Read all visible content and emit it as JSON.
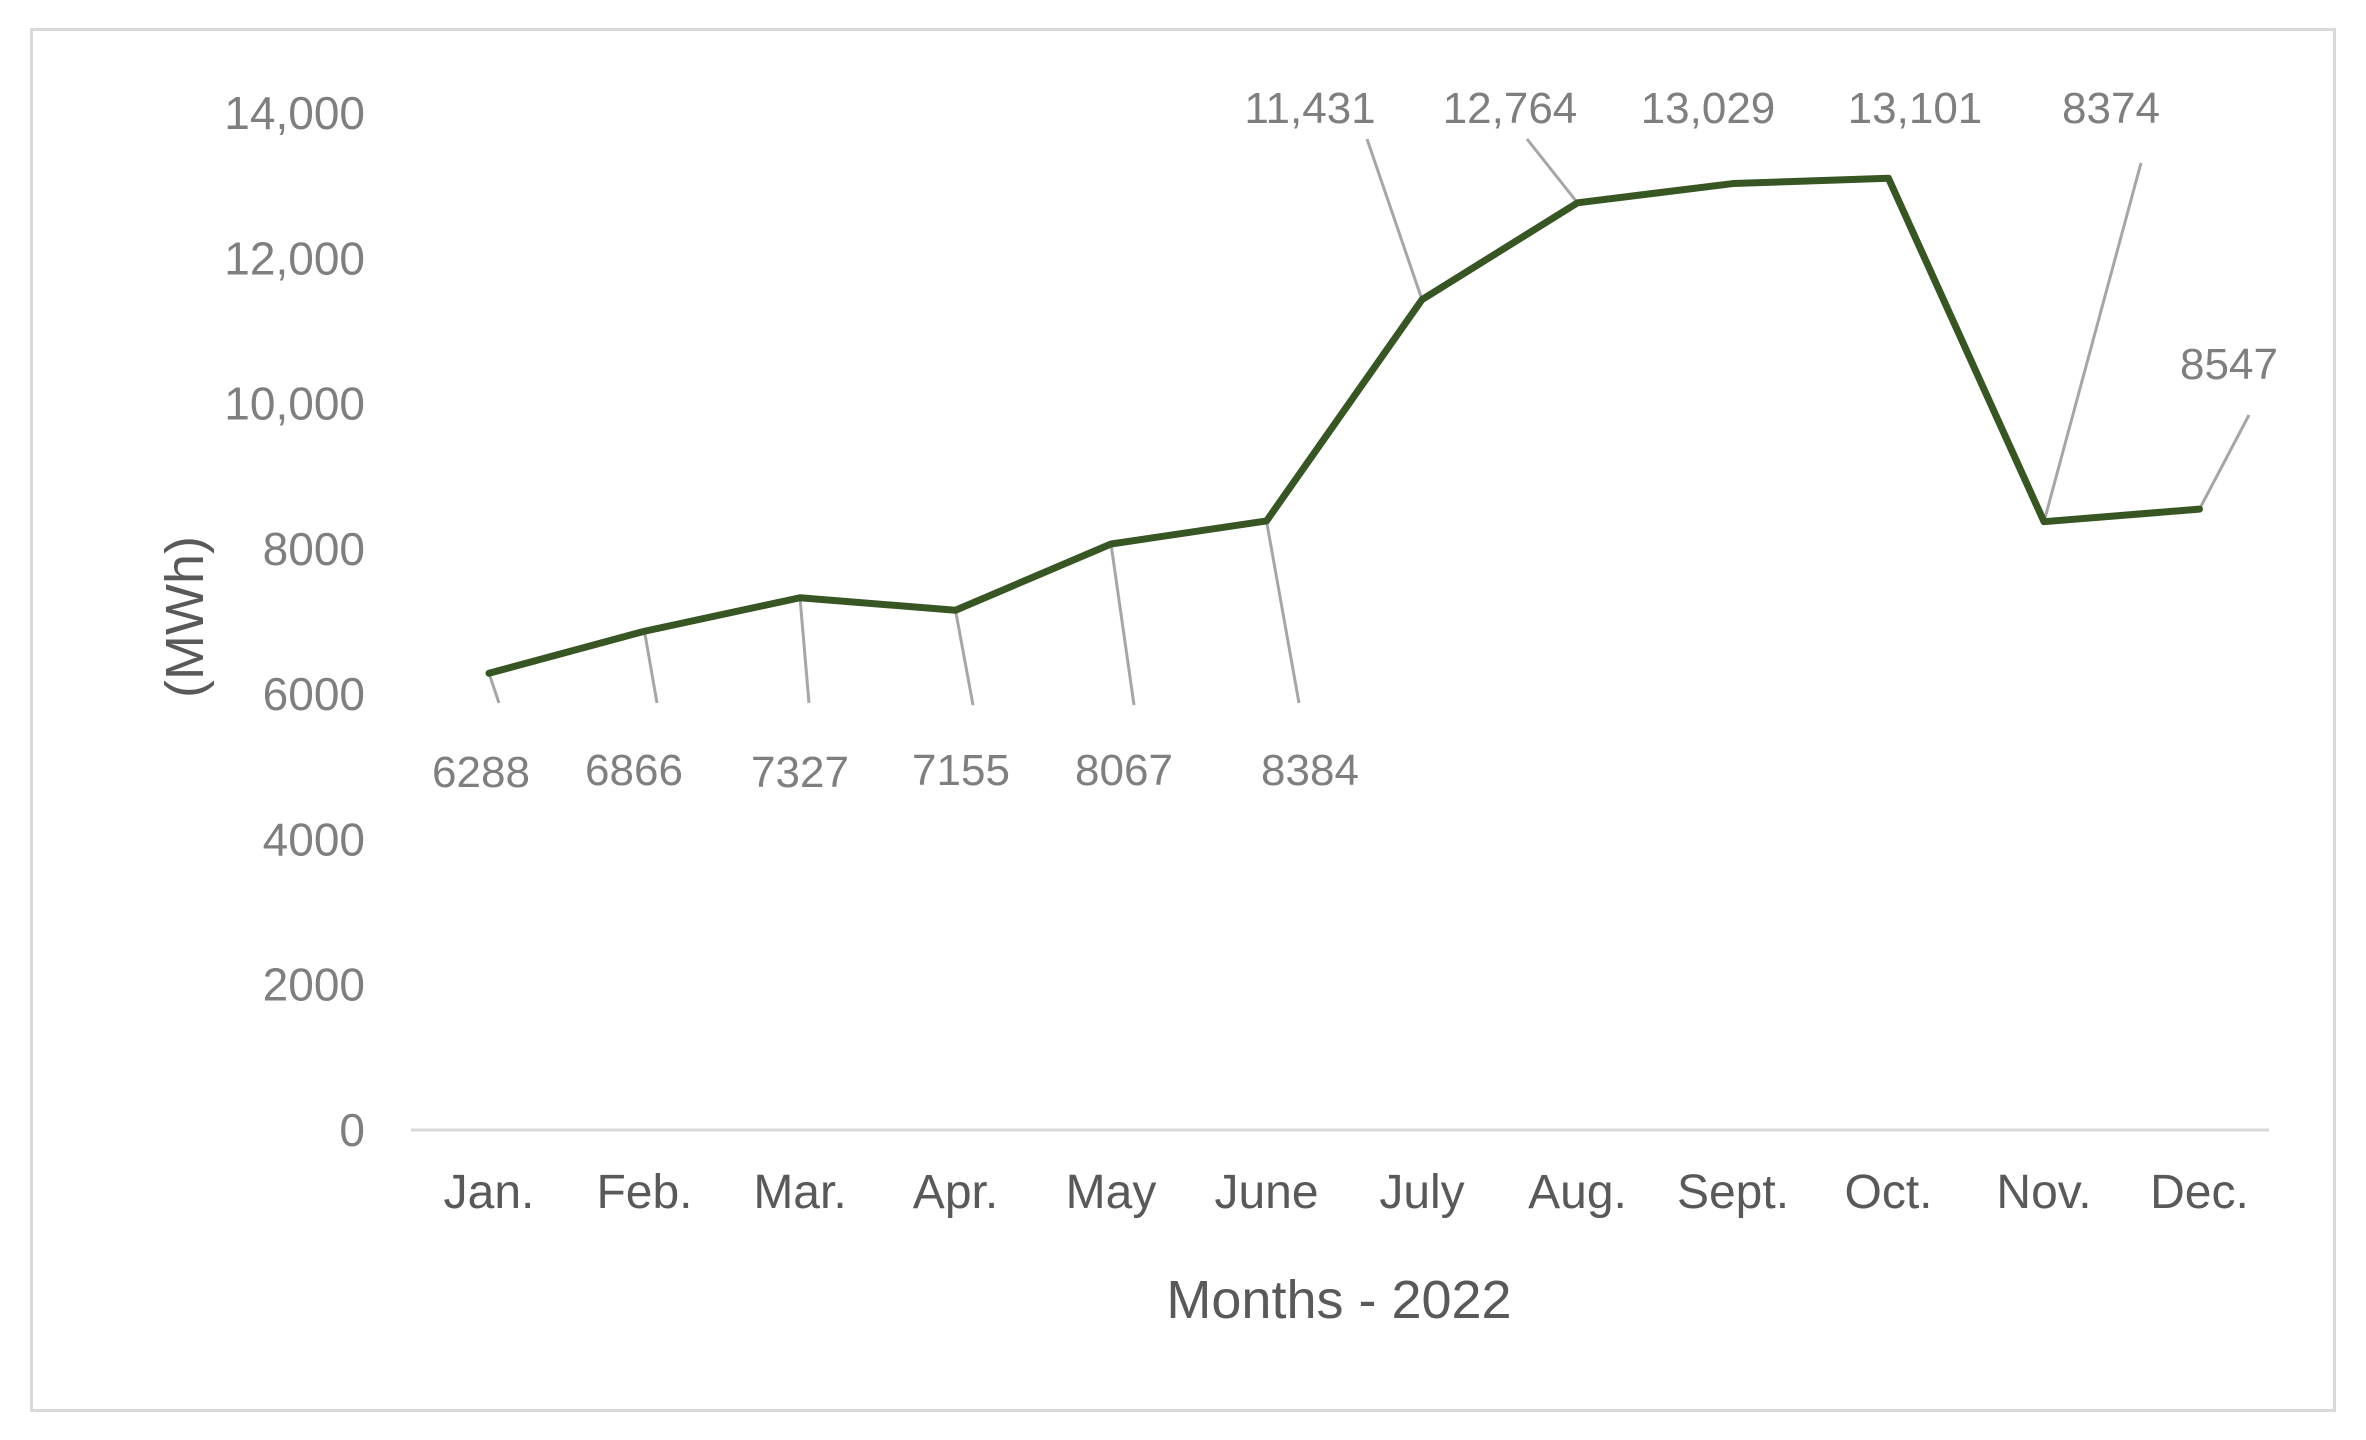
{
  "chart_data": {
    "type": "line",
    "title": "",
    "xlabel": "Months - 2022",
    "ylabel": "(MWh)",
    "ylim": [
      0,
      14000
    ],
    "y_ticks": [
      {
        "value": 0,
        "label": "0"
      },
      {
        "value": 2000,
        "label": "2000"
      },
      {
        "value": 4000,
        "label": "4000"
      },
      {
        "value": 6000,
        "label": "6000"
      },
      {
        "value": 8000,
        "label": "8000"
      },
      {
        "value": 10000,
        "label": "10,000"
      },
      {
        "value": 12000,
        "label": "12,000"
      },
      {
        "value": 14000,
        "label": "14,000"
      }
    ],
    "categories": [
      "Jan.",
      "Feb.",
      "Mar.",
      "Apr.",
      "May",
      "June",
      "July",
      "Aug.",
      "Sept.",
      "Oct.",
      "Nov.",
      "Dec."
    ],
    "series": [
      {
        "values": [
          6288,
          6866,
          7327,
          7155,
          8067,
          8384,
          11431,
          12764,
          13029,
          13101,
          8374,
          8547
        ],
        "labels": [
          "6288",
          "6866",
          "7327",
          "7155",
          "8067",
          "8384",
          "11,431",
          "12,764",
          "13,029",
          "13,101",
          "8374",
          "8547"
        ],
        "color": "#375623"
      }
    ],
    "grid": false,
    "legend": "none",
    "axis_color": "#d9d9d9",
    "leader_line_color": "#a6a6a6",
    "label_color": "#7f7f7f"
  }
}
